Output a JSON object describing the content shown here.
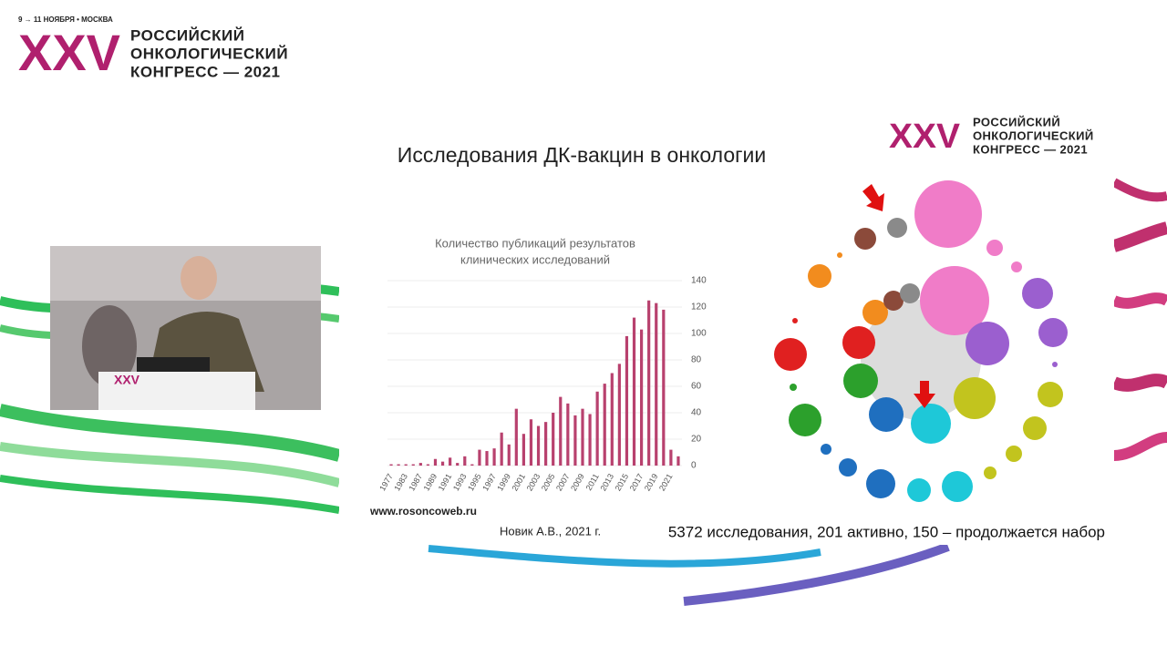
{
  "header": {
    "date": "9 → 11 НОЯБРЯ • МОСКВА",
    "logo": "XXV",
    "lines": [
      "РОССИЙСКИЙ",
      "ОНКОЛОГИЧЕСКИЙ",
      "КОНГРЕСС — 2021"
    ]
  },
  "slide": {
    "title": "Исследования ДК-вакцин в онкологии",
    "logo": "XXV",
    "logo_lines": [
      "РОССИЙСКИЙ",
      "ОНКОЛОГИЧЕСКИЙ",
      "КОНГРЕСС — 2021"
    ],
    "website": "www.rosoncoweb.ru",
    "author": "Новик А.В., 2021 г.",
    "summary": "5372 исследования, 201 активно, 150 – продолжается набор"
  },
  "chart_data": {
    "type": "bar",
    "title_lines": [
      "Количество публикаций результатов",
      "клинических исследований"
    ],
    "categories": [
      "1977",
      null,
      "1983",
      null,
      "1987",
      null,
      "1989",
      null,
      "1991",
      null,
      "1993",
      null,
      "1995",
      null,
      "1997",
      null,
      "1999",
      null,
      "2001",
      null,
      "2003",
      null,
      "2005",
      null,
      "2007",
      null,
      "2009",
      null,
      "2011",
      null,
      "2013",
      null,
      "2015",
      null,
      "2017",
      null,
      "2019",
      null,
      "2021",
      null
    ],
    "values": [
      1,
      1,
      1,
      1,
      2,
      1,
      5,
      3,
      6,
      2,
      7,
      1,
      12,
      11,
      13,
      25,
      16,
      43,
      24,
      35,
      30,
      33,
      40,
      52,
      47,
      38,
      43,
      39,
      56,
      62,
      70,
      77,
      98,
      112,
      103,
      125,
      123,
      118,
      12,
      7
    ],
    "color": "#b8416e",
    "ylim": [
      0,
      140
    ],
    "yticks": [
      0,
      20,
      40,
      60,
      80,
      100,
      120,
      140
    ],
    "grid": true,
    "y_axis_side": "right"
  }
}
